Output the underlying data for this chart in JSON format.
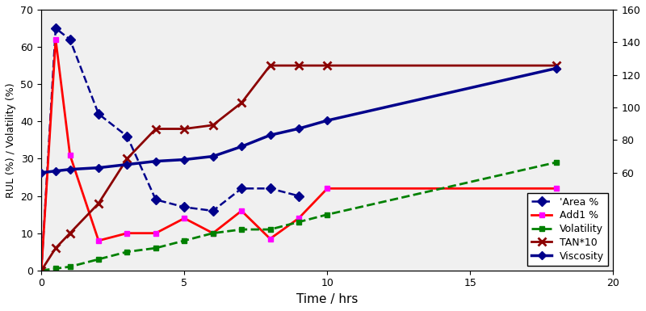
{
  "area_x": [
    0,
    0.5,
    1,
    2,
    3,
    4,
    5,
    6,
    7,
    8,
    9
  ],
  "area_y": [
    0,
    65,
    62,
    42,
    36,
    19,
    17,
    16,
    22,
    22,
    20
  ],
  "add1_x": [
    0,
    0.5,
    1,
    2,
    3,
    4,
    5,
    6,
    7,
    8,
    9,
    10,
    18
  ],
  "add1_y": [
    0,
    62,
    31,
    8,
    10,
    10,
    14,
    10,
    16,
    8.5,
    14,
    22,
    22
  ],
  "volatility_x": [
    0,
    0.5,
    1,
    2,
    3,
    4,
    5,
    6,
    7,
    8,
    9,
    10,
    18
  ],
  "volatility_y": [
    0,
    0.5,
    1,
    3,
    5,
    6,
    8,
    10,
    11,
    11,
    13,
    15,
    29
  ],
  "tan_x": [
    0,
    0.5,
    1,
    2,
    3,
    4,
    5,
    6,
    7,
    8,
    9,
    10,
    18
  ],
  "tan_y": [
    0,
    6,
    10,
    18,
    30,
    38,
    38,
    39,
    45,
    55,
    55,
    55,
    55
  ],
  "viscosity_x": [
    0,
    0.5,
    1,
    2,
    3,
    4,
    5,
    6,
    7,
    8,
    9,
    10,
    18
  ],
  "viscosity_y": [
    60,
    61,
    62,
    63,
    65,
    67,
    68,
    70,
    76,
    83,
    87,
    92,
    124
  ],
  "area_color": "#00008B",
  "add1_color": "#FF0000",
  "add1_marker_color": "#FF00FF",
  "volatility_color": "#008000",
  "tan_color": "#8B0000",
  "viscosity_color": "#00008B",
  "xlabel": "Time / hrs",
  "ylabel_left": "RUL (%) / Volatility (%)",
  "ylim_left": [
    0,
    70
  ],
  "ylim_right": [
    0,
    160
  ],
  "xlim": [
    0,
    20
  ],
  "yticks_left": [
    0,
    10,
    20,
    30,
    40,
    50,
    60,
    70
  ],
  "yticks_right": [
    60,
    80,
    100,
    120,
    140,
    160
  ],
  "xticks": [
    0,
    5,
    10,
    15,
    20
  ],
  "legend_labels": [
    "'Area %",
    "Add1 %",
    "Volatility",
    "TAN*10",
    "Viscosity"
  ],
  "bg_color": "#ffffff",
  "plot_bg": "#f0f0f0"
}
